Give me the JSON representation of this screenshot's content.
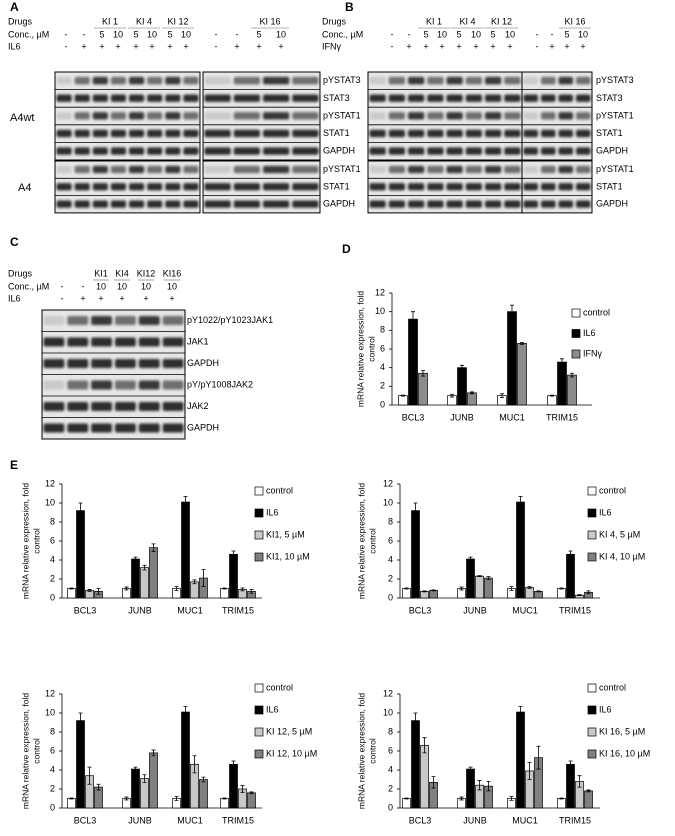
{
  "panels": [
    {
      "label": "A",
      "row_labels": [
        "Drugs",
        "Conc., µM",
        "IL6"
      ],
      "drugs": [
        "KI 1",
        "KI 4",
        "KI 12",
        "KI 16"
      ],
      "conc": [
        "-",
        "-",
        "5",
        "10",
        "5",
        "10",
        "5",
        "10",
        "-",
        "-",
        "5",
        "10"
      ],
      "stim": [
        "-",
        "+",
        "+",
        "+",
        "+",
        "+",
        "+",
        "+",
        "-",
        "+",
        "+",
        "+"
      ],
      "groups": [
        {
          "name": "A4wt",
          "rows": [
            "pYSTAT3",
            "STAT3",
            "pYSTAT1",
            "STAT1",
            "GAPDH"
          ]
        },
        {
          "name": "A4",
          "rows": [
            "pYSTAT1",
            "STAT1",
            "GAPDH"
          ]
        }
      ]
    },
    {
      "label": "B",
      "row_labels": [
        "Drugs",
        "Conc., µM",
        "IFNγ"
      ],
      "drugs": [
        "KI 1",
        "KI 4",
        "KI 12",
        "KI 16"
      ],
      "conc": [
        "-",
        "-",
        "5",
        "10",
        "5",
        "10",
        "5",
        "10",
        "-",
        "-",
        "5",
        "10"
      ],
      "stim": [
        "-",
        "+",
        "+",
        "+",
        "+",
        "+",
        "+",
        "+",
        "-",
        "+",
        "+",
        "+"
      ],
      "groups": [
        {
          "rows": [
            "pYSTAT3",
            "STAT3",
            "pYSTAT1",
            "STAT1",
            "GAPDH"
          ]
        },
        {
          "rows": [
            "pYSTAT1",
            "STAT1",
            "GAPDH"
          ]
        }
      ]
    },
    {
      "label": "C",
      "row_labels": [
        "Drugs",
        "Conc., µM",
        "IL6"
      ],
      "drugs": [
        "KI1",
        "KI4",
        "KI12",
        "KI16"
      ],
      "conc": [
        "-",
        "-",
        "10",
        "10",
        "10",
        "10"
      ],
      "stim": [
        "-",
        "+",
        "+",
        "+",
        "+",
        "+"
      ],
      "groups": [
        {
          "rows": [
            "pY1022/pY1023JAK1",
            "JAK1",
            "GAPDH",
            "pY/pY1008JAK2",
            "JAK2",
            "GAPDH"
          ]
        }
      ]
    }
  ],
  "chart_labels": [
    "D",
    "E"
  ],
  "chart_data": [
    {
      "type": "bar",
      "y_label": [
        "mRNA relative expression, fold",
        "control"
      ],
      "categories": [
        "BCL3",
        "JUNB",
        "MUC1",
        "TRIM15"
      ],
      "ylim": [
        0,
        12
      ],
      "yticks": [
        0,
        2,
        4,
        6,
        8,
        10,
        12
      ],
      "series": [
        {
          "name": "control",
          "color": "#ffffff",
          "values": [
            1,
            1,
            1,
            1
          ],
          "errors": [
            0.05,
            0.15,
            0.2,
            0.05
          ]
        },
        {
          "name": "IL6",
          "color": "#000000",
          "values": [
            9.2,
            4.0,
            10.0,
            4.6
          ],
          "errors": [
            0.8,
            0.25,
            0.7,
            0.35
          ]
        },
        {
          "name": "IFNγ",
          "color": "#8c8c8c",
          "values": [
            3.4,
            1.3,
            6.6,
            3.2
          ],
          "errors": [
            0.3,
            0.1,
            0.1,
            0.2
          ]
        }
      ]
    },
    {
      "type": "bar",
      "y_label": [
        "mRNA relative expression, fold",
        "control"
      ],
      "categories": [
        "BCL3",
        "JUNB",
        "MUC1",
        "TRIM15"
      ],
      "ylim": [
        0,
        12
      ],
      "yticks": [
        0,
        2,
        4,
        6,
        8,
        10,
        12
      ],
      "series": [
        {
          "name": "control",
          "color": "#ffffff",
          "values": [
            1,
            1,
            1,
            1
          ],
          "errors": [
            0.05,
            0.15,
            0.2,
            0.05
          ]
        },
        {
          "name": "IL6",
          "color": "#000000",
          "values": [
            9.2,
            4.1,
            10.1,
            4.6
          ],
          "errors": [
            0.8,
            0.2,
            0.6,
            0.35
          ]
        },
        {
          "name": "KI1, 5 µM",
          "color": "#c8c8c8",
          "values": [
            0.8,
            3.2,
            1.7,
            0.9
          ],
          "errors": [
            0.1,
            0.25,
            0.2,
            0.15
          ]
        },
        {
          "name": "KI1, 10 µM",
          "color": "#808080",
          "values": [
            0.7,
            5.3,
            2.1,
            0.7
          ],
          "errors": [
            0.3,
            0.4,
            0.9,
            0.2
          ]
        }
      ]
    },
    {
      "type": "bar",
      "y_label": [
        "mRNA relative expression, fold",
        "control"
      ],
      "categories": [
        "BCL3",
        "JUNB",
        "MUC1",
        "TRIM15"
      ],
      "ylim": [
        0,
        12
      ],
      "yticks": [
        0,
        2,
        4,
        6,
        8,
        10,
        12
      ],
      "series": [
        {
          "name": "control",
          "color": "#ffffff",
          "values": [
            1,
            1,
            1,
            1
          ],
          "errors": [
            0.05,
            0.15,
            0.2,
            0.05
          ]
        },
        {
          "name": "IL6",
          "color": "#000000",
          "values": [
            9.2,
            4.1,
            10.1,
            4.6
          ],
          "errors": [
            0.8,
            0.2,
            0.6,
            0.35
          ]
        },
        {
          "name": "KI 4, 5 µM",
          "color": "#c8c8c8",
          "values": [
            0.7,
            2.3,
            1.1,
            0.3
          ],
          "errors": [
            0.05,
            0.05,
            0.1,
            0.05
          ]
        },
        {
          "name": "KI 4, 10 µM",
          "color": "#808080",
          "values": [
            0.8,
            2.1,
            0.7,
            0.6
          ],
          "errors": [
            0.05,
            0.15,
            0.05,
            0.15
          ]
        }
      ]
    },
    {
      "type": "bar",
      "y_label": [
        "mRNA relative expression, fold",
        "control"
      ],
      "categories": [
        "BCL3",
        "JUNB",
        "MUC1",
        "TRIM15"
      ],
      "ylim": [
        0,
        12
      ],
      "yticks": [
        0,
        2,
        4,
        6,
        8,
        10,
        12
      ],
      "series": [
        {
          "name": "control",
          "color": "#ffffff",
          "values": [
            1,
            1,
            1,
            1
          ],
          "errors": [
            0.05,
            0.15,
            0.2,
            0.05
          ]
        },
        {
          "name": "IL6",
          "color": "#000000",
          "values": [
            9.2,
            4.1,
            10.1,
            4.6
          ],
          "errors": [
            0.8,
            0.2,
            0.6,
            0.35
          ]
        },
        {
          "name": "KI 12, 5 µM",
          "color": "#c8c8c8",
          "values": [
            3.4,
            3.1,
            4.6,
            2.0
          ],
          "errors": [
            0.9,
            0.4,
            0.9,
            0.35
          ]
        },
        {
          "name": "KI 12, 10 µM",
          "color": "#808080",
          "values": [
            2.2,
            5.8,
            3.0,
            1.6
          ],
          "errors": [
            0.3,
            0.3,
            0.25,
            0.1
          ]
        }
      ]
    },
    {
      "type": "bar",
      "y_label": [
        "mRNA relative expression, fold",
        "control"
      ],
      "categories": [
        "BCL3",
        "JUNB",
        "MUC1",
        "TRIM15"
      ],
      "ylim": [
        0,
        12
      ],
      "yticks": [
        0,
        2,
        4,
        6,
        8,
        10,
        12
      ],
      "series": [
        {
          "name": "control",
          "color": "#ffffff",
          "values": [
            1,
            1,
            1,
            1
          ],
          "errors": [
            0.05,
            0.15,
            0.2,
            0.05
          ]
        },
        {
          "name": "IL6",
          "color": "#000000",
          "values": [
            9.2,
            4.1,
            10.1,
            4.6
          ],
          "errors": [
            0.8,
            0.2,
            0.6,
            0.35
          ]
        },
        {
          "name": "KI 16, 5 µM",
          "color": "#c8c8c8",
          "values": [
            6.6,
            2.4,
            3.9,
            2.8
          ],
          "errors": [
            0.8,
            0.5,
            0.9,
            0.6
          ]
        },
        {
          "name": "KI 16, 10 µM",
          "color": "#808080",
          "values": [
            2.7,
            2.3,
            5.3,
            1.8
          ],
          "errors": [
            0.6,
            0.5,
            1.2,
            0.1
          ]
        }
      ]
    }
  ]
}
